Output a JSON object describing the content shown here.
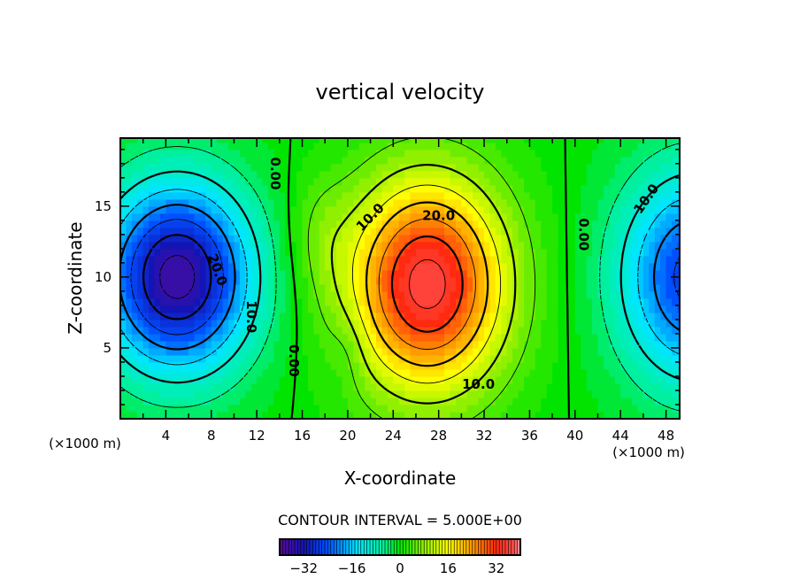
{
  "chart_data": {
    "type": "heatmap",
    "title": "vertical velocity",
    "xlabel": "X-coordinate",
    "ylabel": "Z-coordinate",
    "x_unit_label": "(×1000 m)",
    "y_unit_label": "(×1000 m)",
    "xlim": [
      0,
      49.2
    ],
    "ylim": [
      0,
      19.8
    ],
    "xticks": [
      4,
      8,
      12,
      16,
      20,
      24,
      28,
      32,
      36,
      40,
      44,
      48
    ],
    "yticks": [
      5,
      10,
      15
    ],
    "contour_interval_label": "CONTOUR INTERVAL = 5.000E+00",
    "contour_interval": 5,
    "contour_levels_range": [
      -35,
      35
    ],
    "field_blobs": [
      {
        "x": 5,
        "z": 10,
        "amp": -37,
        "sx": 4.6,
        "sz": 4.6
      },
      {
        "x": 27,
        "z": 9.5,
        "amp": 37,
        "sx": 4.8,
        "sz": 5.2
      },
      {
        "x": 50.5,
        "z": 10,
        "amp": -27,
        "sx": 4.6,
        "sz": 5.2
      },
      {
        "x": 17.5,
        "z": 13,
        "amp": 4,
        "sx": 2,
        "sz": 3
      },
      {
        "x": 20,
        "z": 5,
        "amp": -3,
        "sx": 1.2,
        "sz": 2
      }
    ],
    "contour_labels": [
      {
        "text": "0.00",
        "x": 13.6,
        "z": 17.3,
        "rot": 90
      },
      {
        "text": "20.0",
        "x": 8.5,
        "z": 10.5,
        "rot": 70
      },
      {
        "text": "10.0",
        "x": 11.5,
        "z": 7.2,
        "rot": 90
      },
      {
        "text": "0.00",
        "x": 15.2,
        "z": 4.1,
        "rot": 90
      },
      {
        "text": "10.0",
        "x": 22,
        "z": 14.2,
        "rot": -45
      },
      {
        "text": "20.0",
        "x": 28,
        "z": 14.3,
        "rot": 0
      },
      {
        "text": "10.0",
        "x": 31.5,
        "z": 2.4,
        "rot": 0
      },
      {
        "text": "0.00",
        "x": 40.7,
        "z": 13,
        "rot": 90
      },
      {
        "text": "10.0",
        "x": 46.3,
        "z": 15.5,
        "rot": -55
      }
    ],
    "colorbar": {
      "range": [
        -40,
        40
      ],
      "ticks": [
        "-32",
        "-16",
        "0",
        "16",
        "32"
      ],
      "tick_values": [
        -32,
        -16,
        0,
        16,
        32
      ],
      "stops": [
        {
          "v": -40,
          "c": "#5a0a9a"
        },
        {
          "v": -32,
          "c": "#1414b4"
        },
        {
          "v": -24,
          "c": "#0050ff"
        },
        {
          "v": -14,
          "c": "#00e6ff"
        },
        {
          "v": -6,
          "c": "#00f0a0"
        },
        {
          "v": 0,
          "c": "#00e400"
        },
        {
          "v": 8,
          "c": "#90f000"
        },
        {
          "v": 16,
          "c": "#ffff00"
        },
        {
          "v": 24,
          "c": "#ff9a00"
        },
        {
          "v": 32,
          "c": "#ff2a10"
        },
        {
          "v": 38,
          "c": "#ff5050"
        },
        {
          "v": 40,
          "c": "#ffa0a0"
        }
      ]
    }
  }
}
